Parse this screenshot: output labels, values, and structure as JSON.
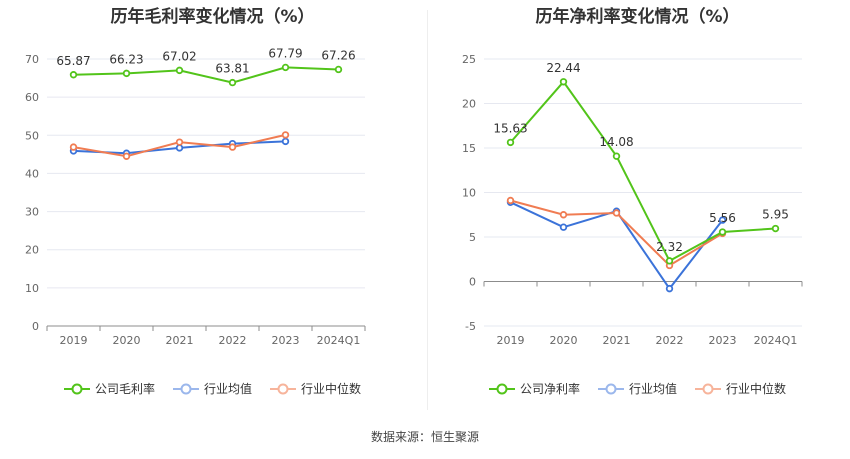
{
  "source_text": "数据来源：恒生聚源",
  "chart_data": [
    {
      "type": "line",
      "title": "历年毛利率变化情况（%）",
      "categories": [
        "2019",
        "2020",
        "2021",
        "2022",
        "2023",
        "2024Q1"
      ],
      "ylim": [
        0,
        70
      ],
      "yticks": [
        0,
        10,
        20,
        30,
        40,
        50,
        60,
        70
      ],
      "grid": true,
      "legend_position": "bottom",
      "series": [
        {
          "name": "公司毛利率",
          "color": "#52c41a",
          "values": [
            65.87,
            66.23,
            67.02,
            63.81,
            67.79,
            67.26
          ],
          "labels": [
            "65.87",
            "66.23",
            "67.02",
            "63.81",
            "67.79",
            "67.26"
          ]
        },
        {
          "name": "行业均值",
          "color": "#3b73d9",
          "values": [
            45.9,
            45.3,
            46.7,
            47.8,
            48.4,
            null
          ],
          "labels": []
        },
        {
          "name": "行业中位数",
          "color": "#f07c52",
          "values": [
            46.9,
            44.5,
            48.2,
            46.9,
            50.1,
            null
          ],
          "labels": []
        }
      ]
    },
    {
      "type": "line",
      "title": "历年净利率变化情况（%）",
      "categories": [
        "2019",
        "2020",
        "2021",
        "2022",
        "2023",
        "2024Q1"
      ],
      "ylim": [
        -5,
        25
      ],
      "yticks": [
        -5,
        0,
        5,
        10,
        15,
        20,
        25
      ],
      "grid": true,
      "legend_position": "bottom",
      "series": [
        {
          "name": "公司净利率",
          "color": "#52c41a",
          "values": [
            15.63,
            22.44,
            14.08,
            2.32,
            5.56,
            5.95
          ],
          "labels": [
            "15.63",
            "22.44",
            "14.08",
            "2.32",
            "5.56",
            "5.95"
          ]
        },
        {
          "name": "行业均值",
          "color": "#3b73d9",
          "values": [
            8.9,
            6.1,
            7.9,
            -0.8,
            6.9,
            null
          ],
          "labels": []
        },
        {
          "name": "行业中位数",
          "color": "#f07c52",
          "values": [
            9.1,
            7.5,
            7.7,
            1.8,
            5.4,
            null
          ],
          "labels": []
        }
      ]
    }
  ]
}
